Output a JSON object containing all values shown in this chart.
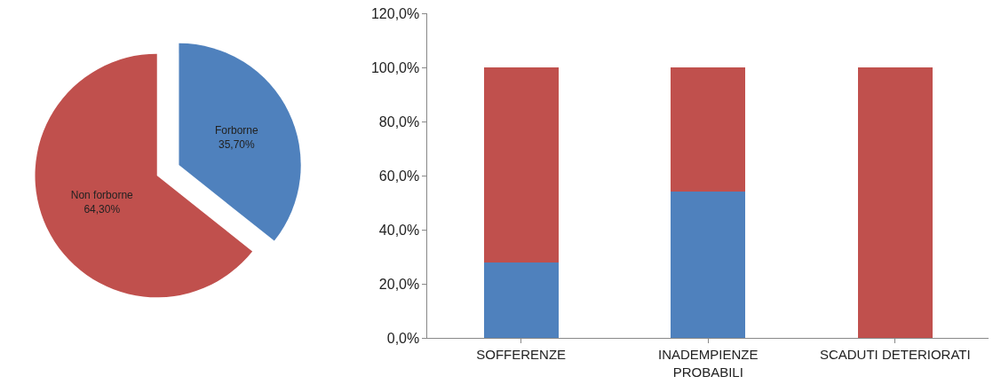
{
  "chart_data": [
    {
      "type": "pie",
      "categories": [
        "Forborne",
        "Non forborne"
      ],
      "values": [
        35.7,
        64.3
      ],
      "colors": [
        "#4f81bd",
        "#c0504d"
      ],
      "value_labels": [
        "35,70%",
        "64,30%"
      ]
    },
    {
      "type": "bar",
      "stacked": true,
      "categories": [
        "SOFFERENZE",
        "INADEMPIENZE PROBABILI",
        "SCADUTI DETERIORATI"
      ],
      "series": [
        {
          "color": "#4f81bd",
          "values": [
            28,
            54,
            0
          ]
        },
        {
          "color": "#c0504d",
          "values": [
            72,
            46,
            100
          ]
        }
      ],
      "ylim": [
        0,
        120
      ],
      "yticks": [
        {
          "value": 0,
          "label": "0,0%"
        },
        {
          "value": 20,
          "label": "20,0%"
        },
        {
          "value": 40,
          "label": "40,0%"
        },
        {
          "value": 60,
          "label": "60,0%"
        },
        {
          "value": 80,
          "label": "80,0%"
        },
        {
          "value": 100,
          "label": "100,0%"
        },
        {
          "value": 120,
          "label": "120,0%"
        }
      ]
    }
  ]
}
